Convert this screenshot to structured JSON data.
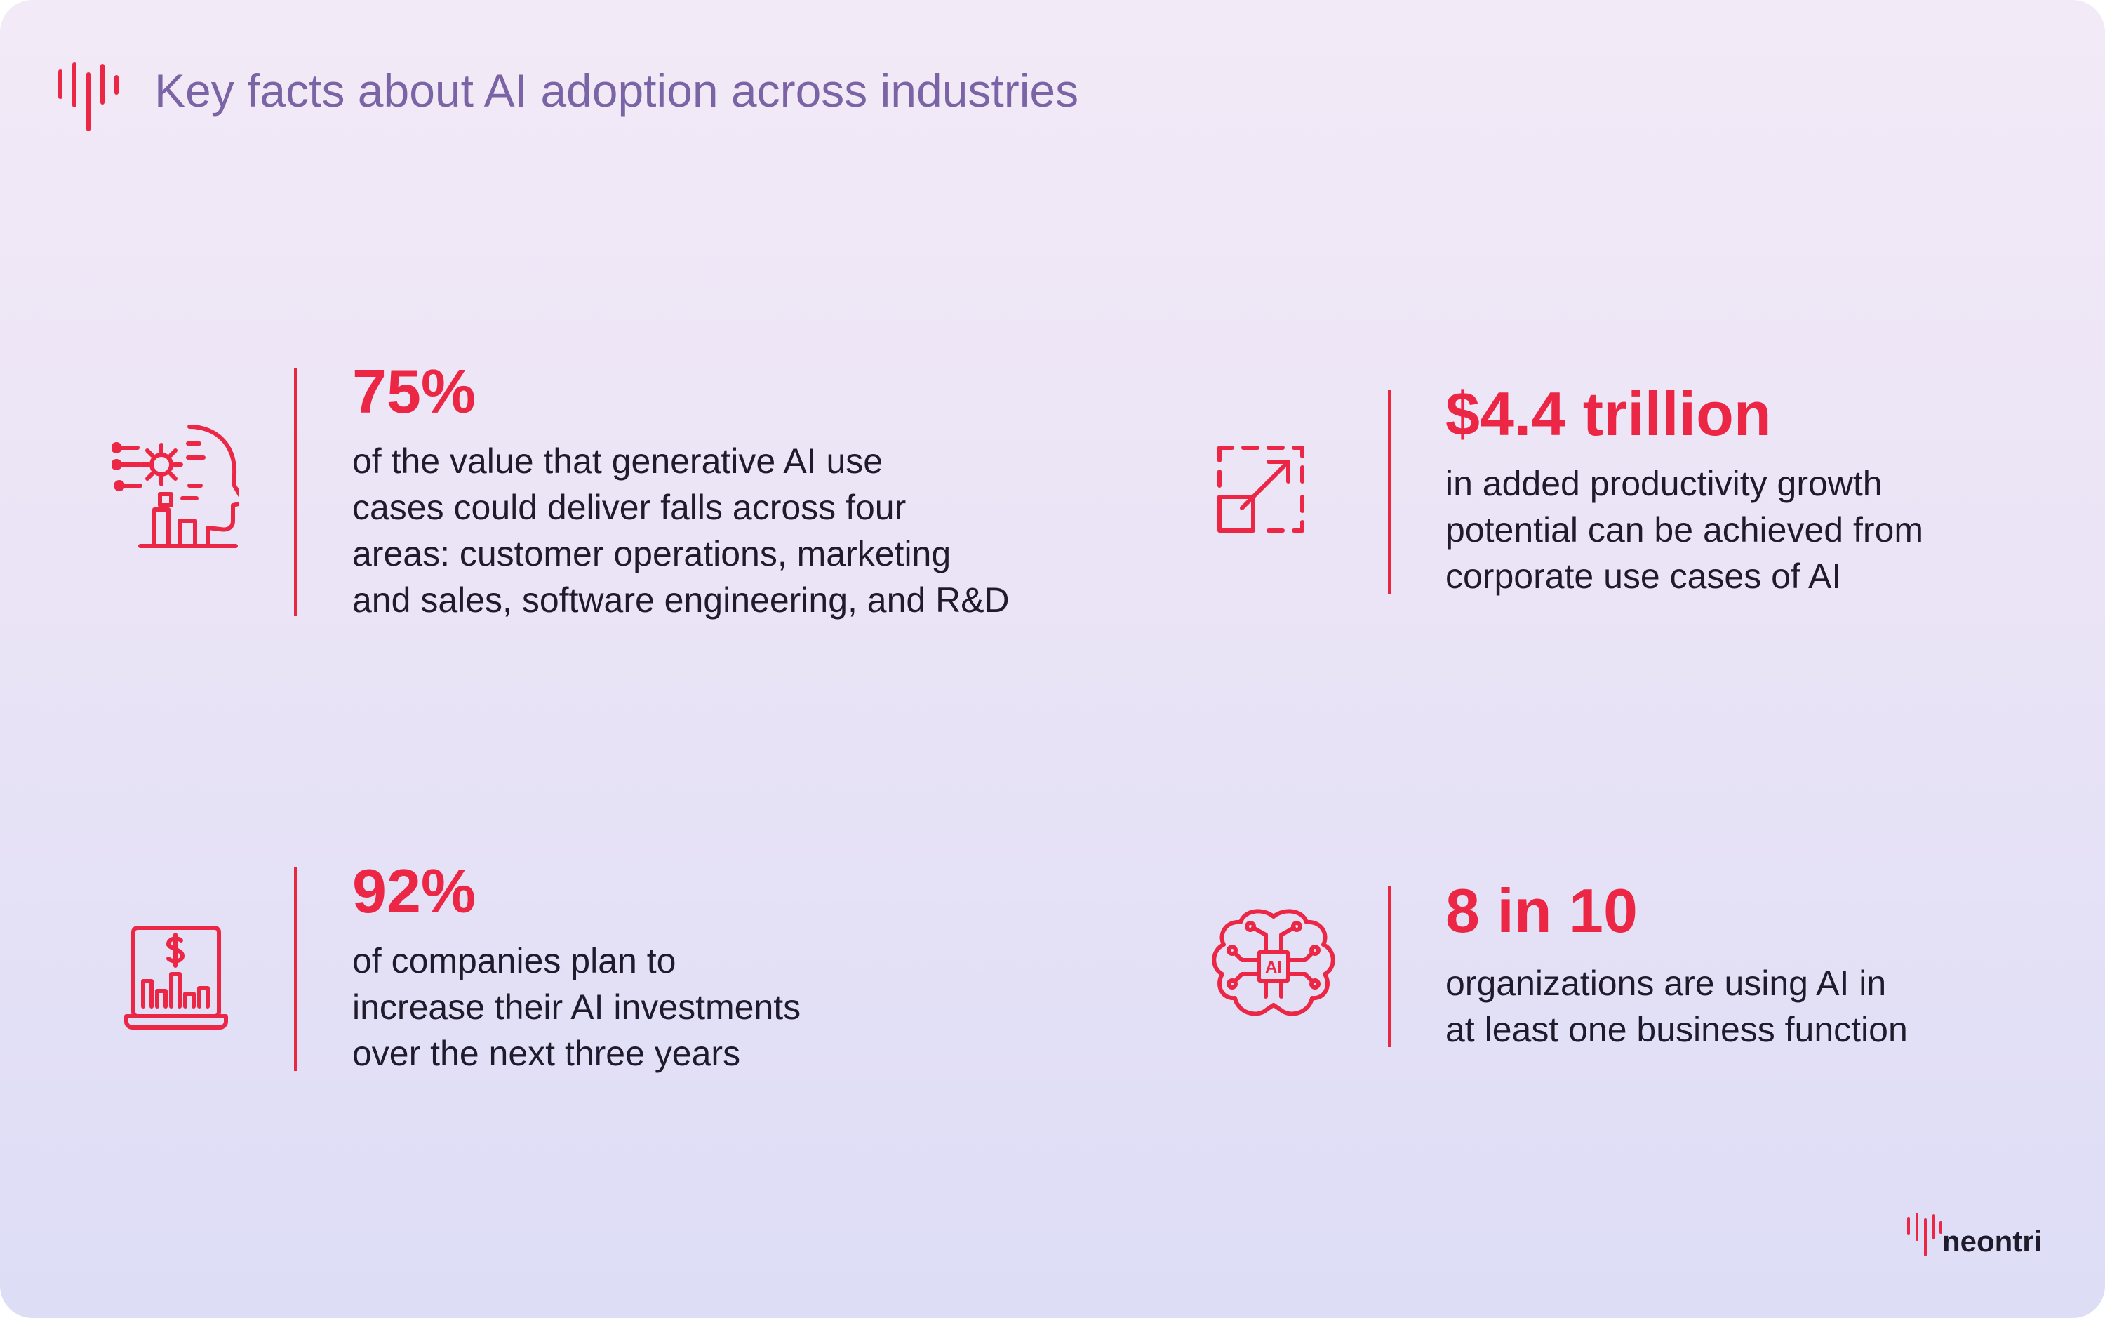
{
  "header": {
    "title": "Key facts about AI adoption across industries",
    "logo_icon": "waveform-logo-icon"
  },
  "facts": [
    {
      "icon": "ai-head-circuit-icon",
      "stat": "75%",
      "desc_lines": [
        "of the value that generative AI use",
        "cases could deliver falls across four",
        "areas: customer operations, marketing",
        "and sales, software engineering, and R&D"
      ]
    },
    {
      "icon": "expand-arrow-icon",
      "stat": "$4.4 trillion",
      "desc_lines": [
        "in added productivity growth",
        "potential can be achieved from",
        "corporate use cases of AI"
      ]
    },
    {
      "icon": "laptop-investment-chart-icon",
      "stat": "92%",
      "desc_lines": [
        "of companies plan to",
        "increase their AI investments",
        "over the next three years"
      ]
    },
    {
      "icon": "ai-brain-chip-icon",
      "stat": "8 in 10",
      "desc_lines": [
        "organizations are using AI in",
        "at least one business function"
      ]
    }
  ],
  "brand": {
    "name": "neontri",
    "logo_icon": "waveform-logo-icon"
  },
  "colors": {
    "accent": "#ec2746",
    "title": "#7a64a6",
    "text": "#1f1a2c"
  }
}
